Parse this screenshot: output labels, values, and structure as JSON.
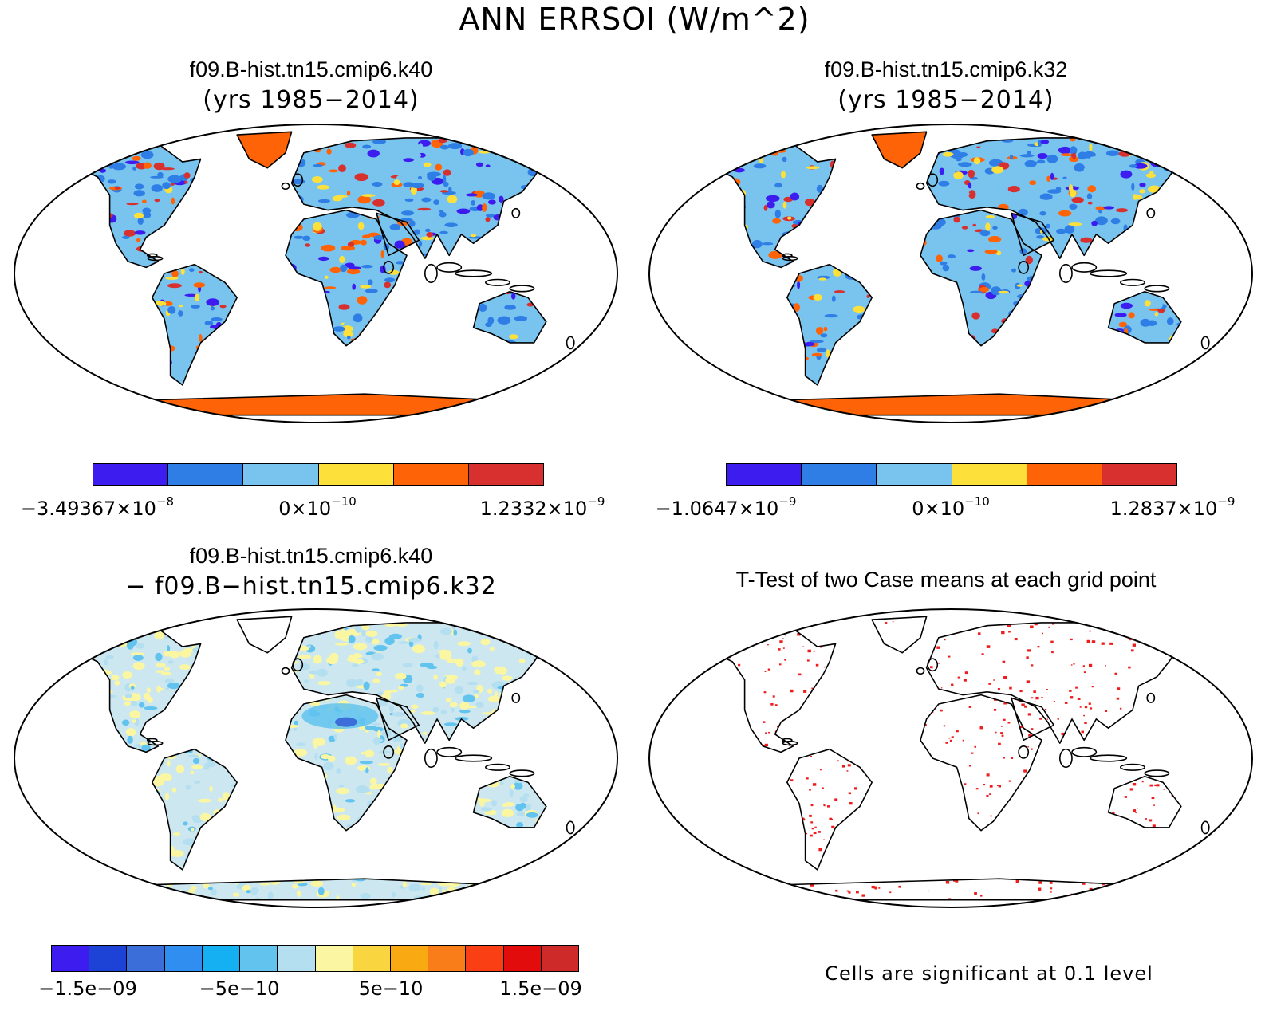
{
  "title": "ANN ERRSOI (W/m^2)",
  "panels": [
    {
      "title": "f09.B-hist.tn15.cmip6.k40",
      "subtitle": "(yrs 1985−2014)",
      "scheme": "case",
      "colorbar": {
        "colors": [
          "#3d1cf0",
          "#2e7ee6",
          "#79c4ef",
          "#fde13a",
          "#fe6407",
          "#d7302e"
        ],
        "labels": [
          {
            "mant": "−3.49367×10",
            "exp": "−8"
          },
          {
            "mant": "0×10",
            "exp": "−10"
          },
          {
            "mant": "1.2332×10",
            "exp": "−9"
          }
        ]
      }
    },
    {
      "title": "f09.B-hist.tn15.cmip6.k32",
      "subtitle": "(yrs 1985−2014)",
      "scheme": "case",
      "colorbar": {
        "colors": [
          "#3d1cf0",
          "#2e7ee6",
          "#79c4ef",
          "#fde13a",
          "#fe6407",
          "#d7302e"
        ],
        "labels": [
          {
            "mant": "−1.0647×10",
            "exp": "−9"
          },
          {
            "mant": "0×10",
            "exp": "−10"
          },
          {
            "mant": "1.2837×10",
            "exp": "−9"
          }
        ]
      }
    },
    {
      "title": "f09.B-hist.tn15.cmip6.k40",
      "subtitle": "− f09.B−hist.tn15.cmip6.k32",
      "scheme": "diff",
      "colorbar": {
        "colors": [
          "#3d1cf0",
          "#1c43d6",
          "#3c6ed9",
          "#2f8ef0",
          "#14b0f2",
          "#62c3ee",
          "#b4dff1",
          "#fbf6a1",
          "#f9d53f",
          "#f9a912",
          "#f97d19",
          "#fb3f15",
          "#e20c0c",
          "#cf2a2a"
        ],
        "labels": [
          "−1.5e−09",
          "−5e−10",
          "5e−10",
          "1.5e−09"
        ]
      }
    },
    {
      "title": "T-Test of two Case means at each grid point",
      "subtitle": "",
      "scheme": "ttest",
      "footnote": "Cells are significant at 0.1 level"
    }
  ]
}
